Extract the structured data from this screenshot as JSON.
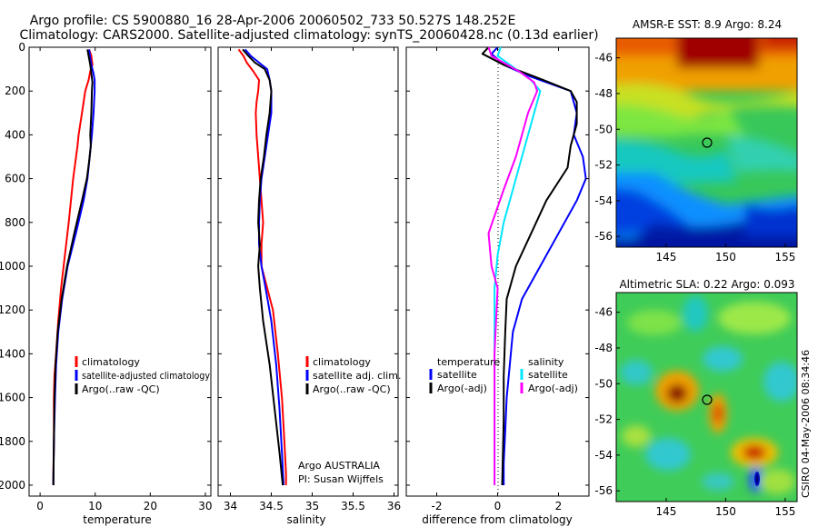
{
  "header": {
    "line1": "Argo profile: CS 5900880_16 28-Apr-2006 20060502_733 50.527S 148.252E",
    "line2": "Climatology: CARS2000. Satellite-adjusted climatology: synTS_20060428.nc (0.13d earlier)"
  },
  "chart_data": [
    {
      "type": "line",
      "xlabel": "temperature",
      "ylabel": "",
      "xlim": [
        -2,
        31
      ],
      "ylim": [
        2050,
        0
      ],
      "y_reversed": true,
      "xticks": [
        "0",
        "10",
        "20",
        "30"
      ],
      "yticks": [
        "0",
        "200",
        "400",
        "600",
        "800",
        "1000",
        "1200",
        "1400",
        "1600",
        "1800",
        "2000"
      ],
      "legend": [
        "climatology",
        "satellite-adjusted climatology",
        "Argo(..raw -QC)"
      ],
      "legend_placement": "lower-right",
      "series": [
        {
          "name": "climatology",
          "color": "#ff0000",
          "x": [
            8.9,
            9.3,
            9.5,
            9.1,
            8.8,
            8.2,
            7.6,
            7.0,
            6.8,
            6.0,
            5.2,
            4.5,
            3.8,
            3.3,
            2.9,
            2.6,
            2.5,
            2.5,
            2.4,
            2.4
          ],
          "y": [
            10,
            40,
            80,
            110,
            150,
            200,
            300,
            400,
            450,
            600,
            800,
            950,
            1100,
            1250,
            1400,
            1500,
            1600,
            1800,
            1950,
            2000
          ]
        },
        {
          "name": "satellite-adjusted climatology",
          "color": "#0000ff",
          "x": [
            8.9,
            9.1,
            9.4,
            9.7,
            9.9,
            9.9,
            9.7,
            9.4,
            9.0,
            8.6,
            7.9,
            6.5,
            5.0,
            4.0,
            3.3,
            2.9,
            2.7,
            2.5,
            2.4
          ],
          "y": [
            10,
            50,
            90,
            120,
            150,
            200,
            300,
            400,
            500,
            600,
            700,
            850,
            1000,
            1150,
            1300,
            1450,
            1600,
            1800,
            2000
          ]
        },
        {
          "name": "Argo(..raw -QC)",
          "color": "#000000",
          "x": [
            8.6,
            8.8,
            9.1,
            9.3,
            9.5,
            9.4,
            9.3,
            9.1,
            9.2,
            8.9,
            8.5,
            7.6,
            6.2,
            4.9,
            3.9,
            3.2,
            2.8,
            2.6,
            2.5,
            2.4
          ],
          "y": [
            10,
            40,
            80,
            120,
            160,
            200,
            300,
            400,
            450,
            520,
            600,
            700,
            850,
            1000,
            1150,
            1300,
            1450,
            1600,
            1800,
            2000
          ]
        }
      ]
    },
    {
      "type": "line",
      "xlabel": "salinity",
      "ylabel": "",
      "xlim": [
        33.85,
        36.05
      ],
      "ylim": [
        2050,
        0
      ],
      "y_reversed": true,
      "xticks": [
        "34",
        "34.5",
        "35",
        "35.5",
        "36"
      ],
      "legend": [
        "climatology",
        "satellite adj. clim.",
        "Argo(..raw -QC)"
      ],
      "legend_placement": "lower-right",
      "annotation": [
        "Argo AUSTRALIA",
        "PI: Susan Wijffels"
      ],
      "series": [
        {
          "name": "climatology",
          "color": "#ff0000",
          "x": [
            34.1,
            34.16,
            34.2,
            34.28,
            34.35,
            34.34,
            34.32,
            34.31,
            34.32,
            34.34,
            34.36,
            34.38,
            34.4,
            34.38,
            34.38,
            34.45,
            34.52,
            34.58,
            34.63,
            34.66,
            34.68,
            34.68
          ],
          "y": [
            10,
            40,
            70,
            110,
            150,
            200,
            250,
            300,
            400,
            500,
            600,
            700,
            800,
            900,
            1000,
            1100,
            1200,
            1400,
            1600,
            1800,
            1950,
            2000
          ]
        },
        {
          "name": "satellite adj. clim.",
          "color": "#0000ff",
          "x": [
            34.18,
            34.25,
            34.35,
            34.45,
            34.48,
            34.5,
            34.5,
            34.46,
            34.42,
            34.38,
            34.36,
            34.35,
            34.35,
            34.38,
            34.43,
            34.5,
            34.56,
            34.6,
            34.63,
            34.65
          ],
          "y": [
            10,
            40,
            70,
            100,
            150,
            200,
            300,
            400,
            500,
            600,
            700,
            800,
            900,
            1000,
            1100,
            1250,
            1450,
            1650,
            1850,
            2000
          ]
        },
        {
          "name": "Argo(..raw -QC)",
          "color": "#000000",
          "x": [
            34.15,
            34.22,
            34.3,
            34.42,
            34.48,
            34.5,
            34.48,
            34.44,
            34.41,
            34.37,
            34.35,
            34.34,
            34.36,
            34.34,
            34.36,
            34.4,
            34.48,
            34.54,
            34.6,
            34.64
          ],
          "y": [
            10,
            40,
            70,
            100,
            150,
            200,
            300,
            400,
            500,
            600,
            700,
            800,
            900,
            1000,
            1100,
            1250,
            1450,
            1650,
            1850,
            2000
          ]
        }
      ]
    },
    {
      "type": "line",
      "xlabel": "difference from climatology",
      "ylabel": "",
      "xlim": [
        -3,
        3
      ],
      "ylim": [
        2050,
        0
      ],
      "y_reversed": true,
      "xticks": [
        "-2",
        "0",
        "2"
      ],
      "legend_groups": [
        {
          "title": "temperature",
          "entries": [
            "satellite",
            "Argo(-adj)"
          ]
        },
        {
          "title": "salinity",
          "entries": [
            "satellite",
            "Argo(-adj)"
          ]
        }
      ],
      "legend_placement": "lower-center",
      "series": [
        {
          "name": "satellite",
          "group": "temperature",
          "color": "#0000ff",
          "x": [
            0.0,
            -0.2,
            0.2,
            1.0,
            2.4,
            2.6,
            2.5,
            2.8,
            2.9,
            2.6,
            2.0,
            1.4,
            0.8,
            0.5,
            0.4,
            0.3,
            0.25,
            0.2,
            0.2
          ],
          "y": [
            0,
            30,
            80,
            130,
            200,
            300,
            400,
            500,
            600,
            700,
            850,
            1000,
            1150,
            1300,
            1450,
            1600,
            1750,
            1900,
            2000
          ]
        },
        {
          "name": "Argo(-adj)",
          "group": "temperature",
          "color": "#000000",
          "x": [
            -0.3,
            -0.5,
            0.2,
            1.5,
            2.4,
            2.6,
            2.6,
            2.4,
            2.3,
            1.6,
            1.1,
            0.6,
            0.3,
            0.25,
            0.2,
            0.2,
            0.15
          ],
          "y": [
            0,
            30,
            80,
            150,
            200,
            250,
            350,
            450,
            550,
            700,
            850,
            1000,
            1150,
            1300,
            1500,
            1700,
            2000
          ]
        },
        {
          "name": "satellite",
          "group": "salinity",
          "color": "#00e5ff",
          "x": [
            0.1,
            0.0,
            0.6,
            1.1,
            1.4,
            1.2,
            1.0,
            0.8,
            0.5,
            0.2,
            0.0,
            -0.1,
            -0.1,
            -0.1,
            -0.1
          ],
          "y": [
            0,
            40,
            100,
            150,
            200,
            300,
            400,
            500,
            650,
            800,
            950,
            1100,
            1400,
            1700,
            2000
          ]
        },
        {
          "name": "Argo(-adj)",
          "group": "salinity",
          "color": "#ff00ff",
          "x": [
            -0.3,
            -0.2,
            0.7,
            1.2,
            1.3,
            1.0,
            0.8,
            0.6,
            0.2,
            -0.3,
            -0.2,
            0.0,
            -0.1,
            -0.1,
            -0.1
          ],
          "y": [
            0,
            40,
            110,
            160,
            200,
            300,
            400,
            500,
            650,
            850,
            1000,
            1100,
            1400,
            1700,
            2000
          ]
        }
      ]
    },
    {
      "type": "heatmap",
      "title": "AMSR-E SST: 8.9 Argo: 8.24",
      "xlim": [
        140.8,
        156
      ],
      "ylim": [
        -56.6,
        -44.9
      ],
      "xticks": [
        "145",
        "150",
        "155"
      ],
      "yticks": [
        "-46",
        "-48",
        "-50",
        "-52",
        "-54",
        "-56"
      ],
      "colormap": "jet",
      "marker": {
        "x": 148.25,
        "y": -50.53
      }
    },
    {
      "type": "heatmap",
      "title": "Altimetric SLA: 0.22 Argo: 0.093",
      "xlim": [
        140.8,
        156
      ],
      "ylim": [
        -56.6,
        -44.9
      ],
      "xticks": [
        "145",
        "150",
        "155"
      ],
      "yticks": [
        "-46",
        "-48",
        "-50",
        "-52",
        "-54",
        "-56"
      ],
      "colormap": "jet",
      "marker": {
        "x": 148.25,
        "y": -50.53
      },
      "side_label": "CSIRO 04-May-2006 08:34:46"
    }
  ]
}
